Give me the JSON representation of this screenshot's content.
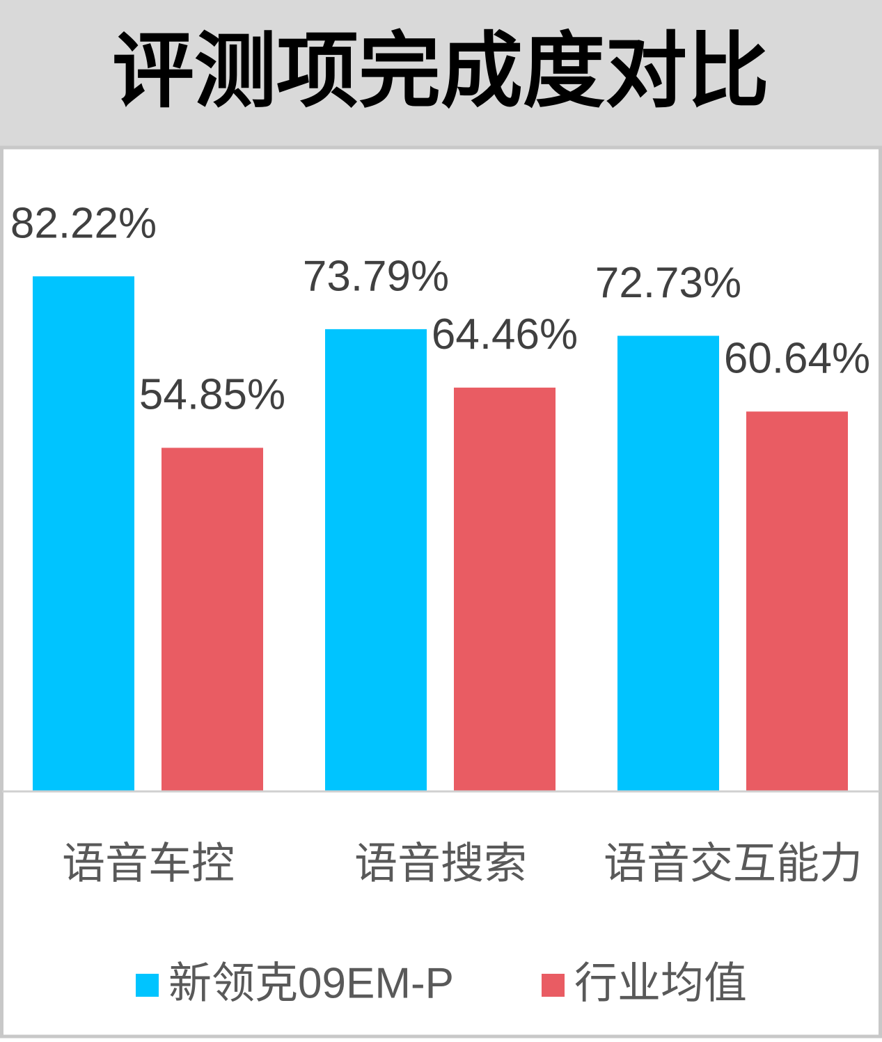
{
  "chart_data": {
    "type": "bar",
    "title": "评测项完成度对比",
    "categories": [
      "语音车控",
      "语音搜索",
      "语音交互能力"
    ],
    "series": [
      {
        "name": "新领克09EM-P",
        "color": "#00c4ff",
        "values": [
          82.22,
          73.79,
          72.73
        ],
        "value_labels": [
          "82.22%",
          "73.79%",
          "72.73%"
        ]
      },
      {
        "name": "行业均值",
        "color": "#e95c63",
        "values": [
          54.85,
          64.46,
          60.64
        ],
        "value_labels": [
          "54.85%",
          "64.46%",
          "60.64%"
        ]
      }
    ],
    "ylim": [
      0,
      100
    ]
  }
}
